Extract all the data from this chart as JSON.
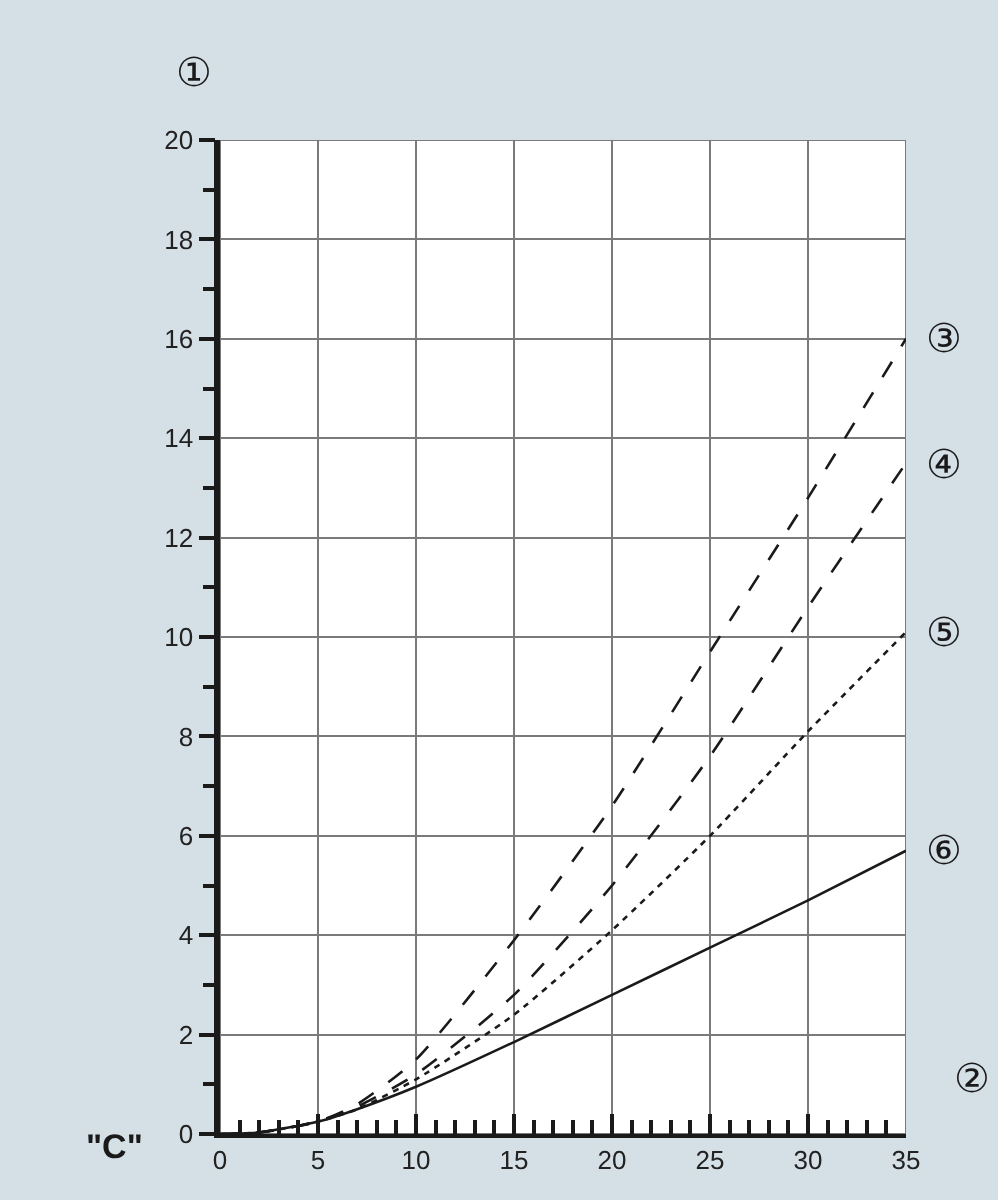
{
  "chart_data": {
    "type": "line",
    "xlabel": "②",
    "ylabel": "①",
    "x": [
      0,
      2,
      5,
      7,
      10,
      15,
      20,
      25,
      30,
      35
    ],
    "series": [
      {
        "name": "③",
        "color": "#1a1a1a",
        "line_style": "dashed",
        "values": [
          0,
          0.03,
          0.25,
          0.6,
          1.5,
          3.9,
          6.6,
          9.7,
          12.8,
          16
        ]
      },
      {
        "name": "④",
        "color": "#1a1a1a",
        "line_style": "dashed",
        "values": [
          0,
          0.03,
          0.25,
          0.55,
          1.2,
          2.8,
          5.0,
          7.6,
          10.6,
          13.5
        ]
      },
      {
        "name": "⑤",
        "color": "#1a1a1a",
        "line_style": "dotted",
        "values": [
          0,
          0.03,
          0.25,
          0.5,
          1.1,
          2.4,
          4.1,
          6.0,
          8.1,
          10.1
        ]
      },
      {
        "name": "⑥",
        "color": "#1a1a1a",
        "line_style": "solid",
        "values": [
          0,
          0.03,
          0.25,
          0.5,
          0.95,
          1.85,
          2.8,
          3.75,
          4.7,
          5.7
        ]
      }
    ],
    "xlim": [
      0,
      35
    ],
    "xticks": [
      0,
      {
        "value": 1,
        "label": null
      },
      {
        "value": 2,
        "label": null
      },
      {
        "value": 3,
        "label": null
      },
      {
        "value": 4,
        "label": null
      },
      5,
      {
        "value": 6,
        "label": null
      },
      {
        "value": 7,
        "label": null
      },
      {
        "value": 8,
        "label": null
      },
      {
        "value": 9,
        "label": null
      },
      10,
      {
        "value": 11,
        "label": null
      },
      {
        "value": 12,
        "label": null
      },
      {
        "value": 13,
        "label": null
      },
      {
        "value": 14,
        "label": null
      },
      15,
      {
        "value": 16,
        "label": null
      },
      {
        "value": 17,
        "label": null
      },
      {
        "value": 18,
        "label": null
      },
      {
        "value": 19,
        "label": null
      },
      20,
      {
        "value": 21,
        "label": null
      },
      {
        "value": 22,
        "label": null
      },
      {
        "value": 23,
        "label": null
      },
      {
        "value": 24,
        "label": null
      },
      25,
      {
        "value": 26,
        "label": null
      },
      {
        "value": 27,
        "label": null
      },
      {
        "value": 28,
        "label": null
      },
      {
        "value": 29,
        "label": null
      },
      30,
      {
        "value": 31,
        "label": null
      },
      {
        "value": 32,
        "label": null
      },
      {
        "value": 33,
        "label": null
      },
      {
        "value": 34,
        "label": null
      },
      35
    ],
    "ylim": [
      0,
      20
    ],
    "yticks": [
      0,
      {
        "value": 1,
        "label": null
      },
      2,
      {
        "value": 3,
        "label": null
      },
      4,
      {
        "value": 5,
        "label": null
      },
      6,
      {
        "value": 7,
        "label": null
      },
      8,
      {
        "value": 9,
        "label": null
      },
      10,
      {
        "value": 11,
        "label": null
      },
      12,
      {
        "value": 13,
        "label": null
      },
      14,
      {
        "value": 15,
        "label": null
      },
      16,
      {
        "value": 17,
        "label": null
      },
      18,
      {
        "value": 19,
        "label": null
      },
      20
    ],
    "grid": true,
    "legend": false,
    "marker": "none",
    "annotations": [
      "\"C\""
    ]
  }
}
